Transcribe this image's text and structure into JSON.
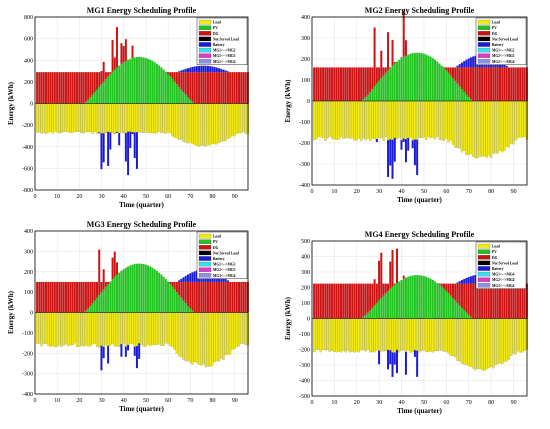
{
  "colors": {
    "load": "#f2ea15",
    "pv": "#21c321",
    "dg": "#cc1313",
    "not_served": "#000000",
    "battery": "#1b1bd6",
    "ex1": "#37e0e8",
    "ex2": "#e339c8",
    "ex3": "#8f8fe6",
    "grid": "#d9d9d9"
  },
  "chart_data": [
    {
      "type": "bar",
      "title": "MG1 Energy Scheduling Profile",
      "xlabel": "Time (quarter)",
      "ylabel": "Energy (kWh)",
      "xlim": [
        0,
        96
      ],
      "ylim": [
        -800,
        800
      ],
      "xticks": [
        0,
        10,
        20,
        30,
        40,
        50,
        60,
        70,
        80,
        90
      ],
      "yticks": [
        -800,
        -600,
        -400,
        -200,
        0,
        200,
        400,
        600,
        800
      ],
      "legend": [
        "Load",
        "PV",
        "DG",
        "Not Served Load",
        "Battery",
        "MG1<-->MG2",
        "MG1<-->MG3",
        "MG1<-->MG4"
      ],
      "legend_position": "top-right",
      "grid": true,
      "params": {
        "base": 290,
        "pvPeak": 430,
        "loadBase": 260,
        "loadEvening": 380,
        "spikeMax": 690,
        "batteryDipMin": -680
      }
    },
    {
      "type": "bar",
      "title": "MG2 Energy Scheduling Profile",
      "xlabel": "Time (quarter)",
      "ylabel": "Energy (kWh)",
      "xlim": [
        0,
        96
      ],
      "ylim": [
        -400,
        400
      ],
      "xticks": [
        0,
        10,
        20,
        30,
        40,
        50,
        60,
        70,
        80,
        90
      ],
      "yticks": [
        -400,
        -300,
        -200,
        -100,
        0,
        100,
        200,
        300,
        400
      ],
      "legend": [
        "Load",
        "PV",
        "DG",
        "Not Served Load",
        "Battery",
        "MG1<-->MG2",
        "MG2<-->MG3",
        "MG2<-->MG4"
      ],
      "legend_position": "top-right",
      "grid": true,
      "params": {
        "base": 160,
        "pvPeak": 230,
        "loadBase": 170,
        "loadEvening": 260,
        "spikeMax": 380,
        "batteryDipMin": -390
      }
    },
    {
      "type": "bar",
      "title": "MG3 Energy Scheduling Profile",
      "xlabel": "Time (quarter)",
      "ylabel": "Energy (kWh)",
      "xlim": [
        0,
        96
      ],
      "ylim": [
        -400,
        400
      ],
      "xticks": [
        0,
        10,
        20,
        30,
        40,
        50,
        60,
        70,
        80,
        90
      ],
      "yticks": [
        -400,
        -300,
        -200,
        -100,
        0,
        100,
        200,
        300,
        400
      ],
      "legend": [
        "Load",
        "PV",
        "DG",
        "Not Served Load",
        "Battery",
        "MG1<-->MG3",
        "MG2<-->MG3",
        "MG3<-->MG4"
      ],
      "legend_position": "top-right",
      "grid": true,
      "params": {
        "base": 150,
        "pvPeak": 240,
        "loadBase": 150,
        "loadEvening": 250,
        "spikeMax": 320,
        "batteryDipMin": -310
      }
    },
    {
      "type": "bar",
      "title": "MG4 Energy Scheduling Profile",
      "xlabel": "Time (quarter)",
      "ylabel": "Energy (kWh)",
      "xlim": [
        0,
        96
      ],
      "ylim": [
        -500,
        500
      ],
      "xticks": [
        0,
        10,
        20,
        30,
        40,
        50,
        60,
        70,
        80,
        90
      ],
      "yticks": [
        -500,
        -400,
        -300,
        -200,
        -100,
        0,
        100,
        200,
        300,
        400,
        500
      ],
      "legend": [
        "Load",
        "PV",
        "DG",
        "Not Served Load",
        "Battery",
        "MG1<-->MG4",
        "MG2<-->MG4",
        "MG3<-->MG4"
      ],
      "legend_position": "top-right",
      "grid": true,
      "params": {
        "base": 225,
        "pvPeak": 280,
        "loadBase": 200,
        "loadEvening": 320,
        "spikeMax": 450,
        "batteryDipMin": -440
      }
    }
  ]
}
